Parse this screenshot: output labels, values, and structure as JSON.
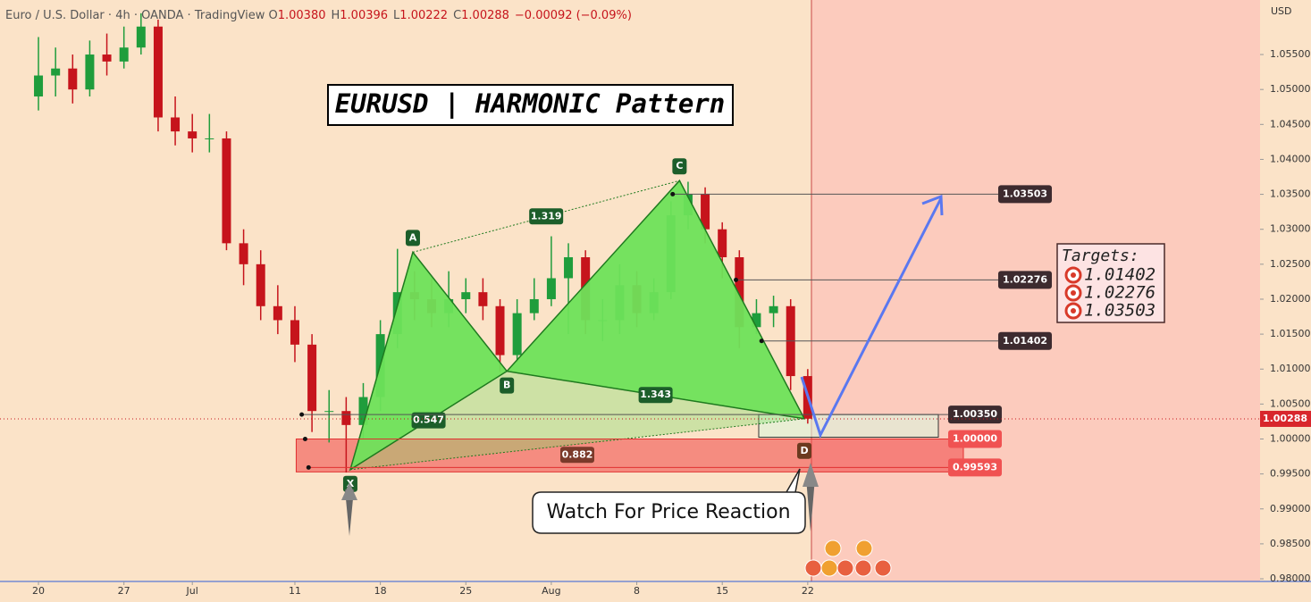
{
  "chart_data": {
    "type": "candlestick",
    "header": {
      "symbol": "Euro / U.S. Dollar",
      "interval": "4h",
      "exchange": "OANDA",
      "platform": "TradingView",
      "ohlc": [
        {
          "key": "O",
          "value": 1.0038,
          "label": "1.00380"
        },
        {
          "key": "H",
          "value": 1.00396,
          "label": "1.00396"
        },
        {
          "key": "L",
          "value": 1.00222,
          "label": "1.00222"
        },
        {
          "key": "C",
          "value": 1.00288,
          "label": "1.00288"
        }
      ],
      "change": {
        "value": -0.00092,
        "label": "−0.00092"
      },
      "change_pct": {
        "value": -0.09,
        "label": "(−0.09%)"
      }
    },
    "currency": "USD",
    "title": "EURUSD | HARMONIC Pattern",
    "annotation": "Watch For Price Reaction",
    "targets_title": "Targets:",
    "targets": [
      1.01402,
      1.02276,
      1.03503
    ],
    "up_color": "#1f9d3c",
    "down_color": "#c6141c",
    "x": [
      0,
      1,
      2,
      3,
      4,
      5,
      6,
      7,
      8,
      9,
      10,
      11,
      12,
      13,
      14,
      15,
      16,
      17,
      18,
      19,
      20,
      21,
      22,
      23,
      24,
      25,
      26,
      27,
      28,
      29,
      30,
      31,
      32,
      33,
      34,
      35,
      36,
      37,
      38,
      39,
      40,
      41,
      42,
      43,
      44,
      45
    ],
    "open": [
      1.049,
      1.052,
      1.053,
      1.05,
      1.055,
      1.054,
      1.056,
      1.059,
      1.046,
      1.044,
      1.043,
      1.043,
      1.028,
      1.025,
      1.019,
      1.017,
      1.0135,
      1.004,
      1.004,
      1.002,
      1.006,
      1.015,
      1.021,
      1.02,
      1.018,
      1.02,
      1.021,
      1.019,
      1.012,
      1.018,
      1.02,
      1.023,
      1.026,
      1.017,
      1.017,
      1.022,
      1.018,
      1.021,
      1.032,
      1.035,
      1.03,
      1.026,
      1.016,
      1.018,
      1.019,
      1.009
    ],
    "high": [
      1.0575,
      1.056,
      1.055,
      1.057,
      1.058,
      1.059,
      1.0609,
      1.06,
      1.049,
      1.0465,
      1.0465,
      1.044,
      1.03,
      1.027,
      1.022,
      1.019,
      1.015,
      1.007,
      1.006,
      1.008,
      1.017,
      1.0272,
      1.024,
      1.023,
      1.024,
      1.023,
      1.023,
      1.02,
      1.02,
      1.023,
      1.029,
      1.028,
      1.027,
      1.02,
      1.025,
      1.024,
      1.023,
      1.034,
      1.0368,
      1.036,
      1.031,
      1.027,
      1.02,
      1.0205,
      1.02,
      1.01
    ],
    "low": [
      1.047,
      1.049,
      1.048,
      1.049,
      1.052,
      1.053,
      1.055,
      1.044,
      1.042,
      1.041,
      1.041,
      1.027,
      1.022,
      1.017,
      1.015,
      1.011,
      1.001,
      0.9995,
      0.9952,
      1.0,
      1.004,
      1.013,
      1.017,
      1.016,
      1.016,
      1.018,
      1.017,
      1.0096,
      1.011,
      1.017,
      1.019,
      1.015,
      1.015,
      1.014,
      1.015,
      1.016,
      1.017,
      1.02,
      1.03,
      1.028,
      1.023,
      1.013,
      1.015,
      1.016,
      1.007,
      1.0022
    ],
    "close": [
      1.052,
      1.053,
      1.05,
      1.055,
      1.054,
      1.056,
      1.059,
      1.046,
      1.044,
      1.043,
      1.043,
      1.028,
      1.025,
      1.019,
      1.017,
      1.0135,
      1.004,
      1.004,
      1.002,
      1.006,
      1.015,
      1.021,
      1.02,
      1.018,
      1.02,
      1.021,
      1.019,
      1.012,
      1.018,
      1.02,
      1.023,
      1.026,
      1.017,
      1.017,
      1.022,
      1.018,
      1.021,
      1.032,
      1.035,
      1.03,
      1.026,
      1.016,
      1.018,
      1.019,
      1.009,
      1.0029
    ],
    "pattern": [
      {
        "label": "X",
        "x": 18.24,
        "y": 0.99562
      },
      {
        "label": "A",
        "x": 21.9,
        "y": 1.02672
      },
      {
        "label": "B",
        "x": 27.4,
        "y": 1.0097
      },
      {
        "label": "C",
        "x": 37.5,
        "y": 1.03696
      },
      {
        "label": "D",
        "x": 44.8,
        "y": 1.0029
      }
    ],
    "ratios": [
      0.547,
      1.319,
      1.343,
      0.882
    ],
    "levels": [
      {
        "price": 1.03503,
        "from": 37.1,
        "color": "#3d2b2f"
      },
      {
        "price": 1.02276,
        "from": 40.8,
        "color": "#3d2b2f"
      },
      {
        "price": 1.01402,
        "from": 42.3,
        "color": "#3d2b2f"
      },
      {
        "price": {
          "value": 1.0035,
          "label": "1.00350"
        },
        "from": 15.4,
        "color": "#3d2b2f"
      },
      {
        "price": {
          "value": 1.0,
          "label": "1.00000"
        },
        "from": 15.6,
        "color": "#f05252"
      },
      {
        "price": 0.99593,
        "from": 15.8,
        "color": "#f05252"
      }
    ],
    "last": 1.00288,
    "xlim": [
      -2.25,
      71.46
    ],
    "ylim": [
      0.97962,
      1.0628
    ],
    "xticks": [
      {
        "value": 0,
        "label": "20"
      },
      {
        "value": 5,
        "label": "27"
      },
      {
        "value": 9,
        "label": "Jul"
      },
      {
        "value": 15,
        "label": "11"
      },
      {
        "value": 20,
        "label": "18"
      },
      {
        "value": 25,
        "label": "25"
      },
      {
        "value": 30,
        "label": "Aug"
      },
      {
        "value": 35,
        "label": "8"
      },
      {
        "value": 40,
        "label": "15"
      },
      {
        "value": 45,
        "label": "22"
      }
    ],
    "yticks": [
      {
        "value": 0.98,
        "label": "0.98000"
      },
      {
        "value": 0.985,
        "label": "0.98500"
      },
      {
        "value": 0.99,
        "label": "0.99000"
      },
      {
        "value": 0.995,
        "label": "0.99500"
      },
      {
        "value": 1.0,
        "label": "1.00000"
      },
      {
        "value": 1.005,
        "label": "1.00500"
      },
      {
        "value": 1.01,
        "label": "1.01000"
      },
      {
        "value": 1.015,
        "label": "1.01500"
      },
      {
        "value": 1.02,
        "label": "1.02000"
      },
      {
        "value": 1.025,
        "label": "1.02500"
      },
      {
        "value": 1.03,
        "label": "1.03000"
      },
      {
        "value": 1.035,
        "label": "1.03500"
      },
      {
        "value": 1.04,
        "label": "1.04000"
      },
      {
        "value": 1.045,
        "label": "1.04500"
      },
      {
        "value": 1.05,
        "label": "1.05000"
      },
      {
        "value": 1.055,
        "label": "1.05500"
      }
    ]
  }
}
